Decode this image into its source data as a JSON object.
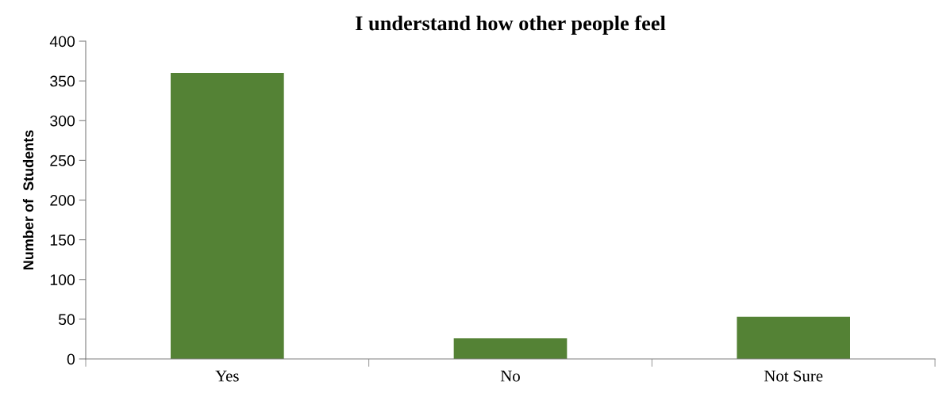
{
  "chart_data": {
    "type": "bar",
    "title": "I understand how other people feel",
    "ylabel": "Number of  Students",
    "categories": [
      "Yes",
      "No",
      "Not Sure"
    ],
    "values": [
      360,
      26,
      53
    ],
    "color": "#548235",
    "ylim": [
      0,
      400
    ],
    "yticks": [
      0,
      50,
      100,
      150,
      200,
      250,
      300,
      350,
      400
    ],
    "grid": false
  }
}
